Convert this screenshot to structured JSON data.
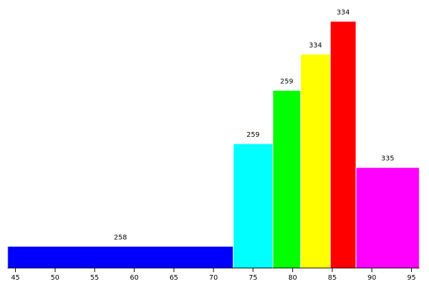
{
  "chart_data": {
    "type": "histogram",
    "density": true,
    "bins": [
      44,
      72.5,
      77.5,
      81,
      84.75,
      88,
      96
    ],
    "values": [
      258,
      259,
      259,
      334,
      334,
      335
    ],
    "colors": [
      "#0000ff",
      "#00ffff",
      "#00ff00",
      "#ffff00",
      "#ff0000",
      "#ff00ff"
    ],
    "xlim": [
      44,
      96
    ],
    "xticks": [
      45,
      50,
      55,
      60,
      65,
      70,
      75,
      80,
      85,
      90,
      95
    ]
  }
}
